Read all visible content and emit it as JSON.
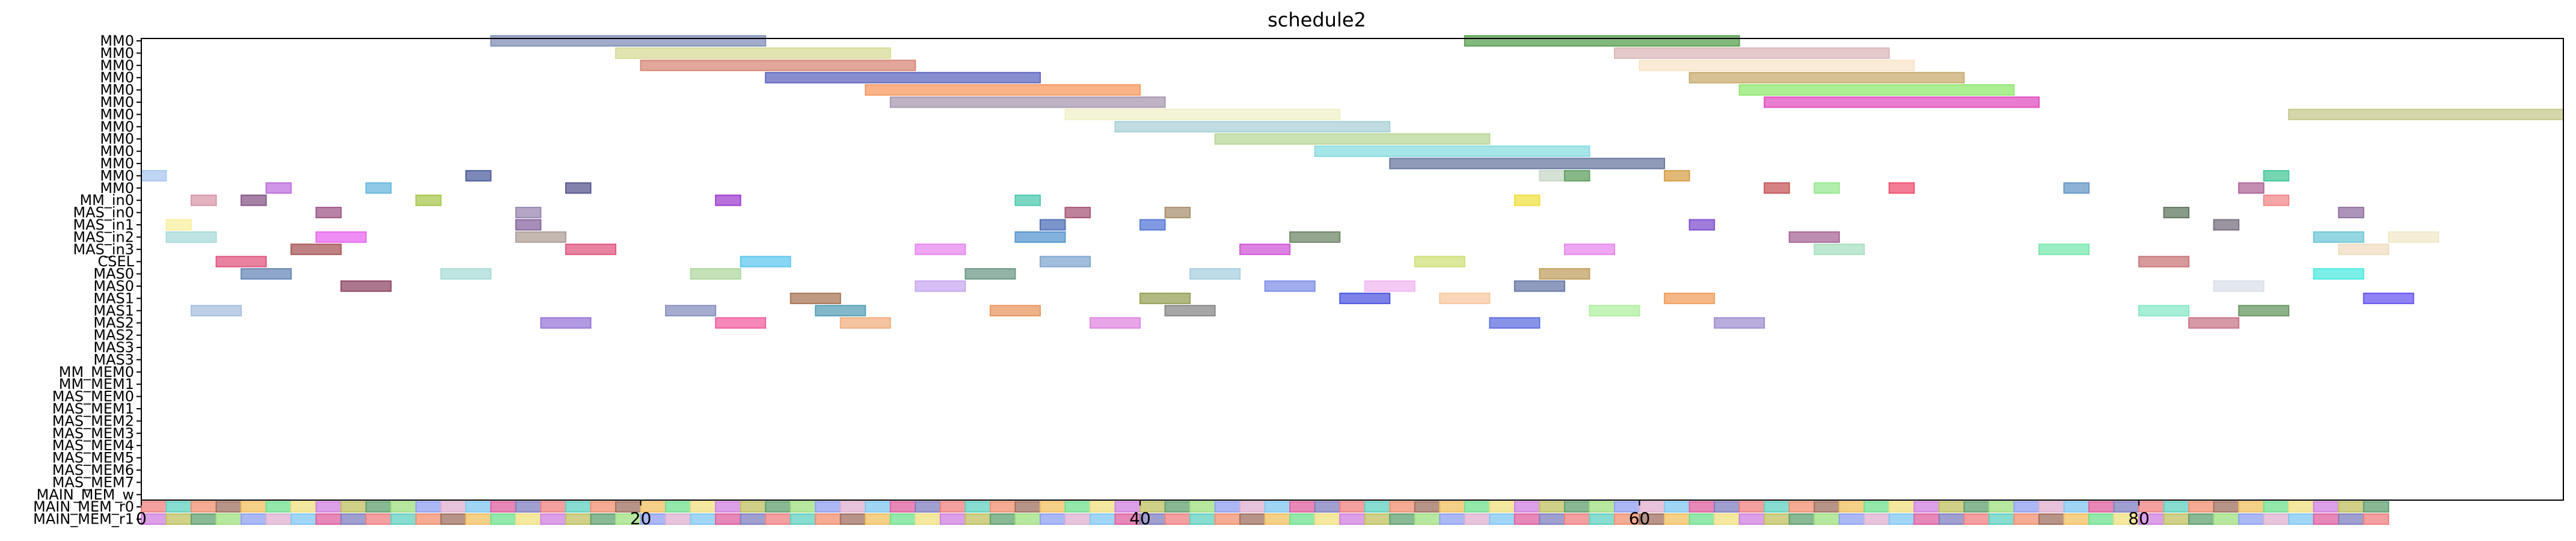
{
  "chart_data": {
    "type": "gantt",
    "title": "schedule2",
    "xlim": [
      0,
      97
    ],
    "xticks": [
      0,
      20,
      40,
      60,
      80
    ],
    "grid": false,
    "rows": [
      "MM0",
      "MM0",
      "MM0",
      "MM0",
      "MM0",
      "MM0",
      "MM0",
      "MM0",
      "MM0",
      "MM0",
      "MM0",
      "MM0",
      "MM0",
      "MM_in0",
      "MAS_in0",
      "MAS_in1",
      "MAS_in2",
      "MAS_in3",
      "CSEL",
      "MAS0",
      "MAS0",
      "MAS1",
      "MAS1",
      "MAS2",
      "MAS2",
      "MAS3",
      "MAS3",
      "MM_MEM0",
      "MM_MEM1",
      "MAS_MEM0",
      "MAS_MEM1",
      "MAS_MEM2",
      "MAS_MEM3",
      "MAS_MEM4",
      "MAS_MEM5",
      "MAS_MEM6",
      "MAS_MEM7",
      "MAIN_MEM_w",
      "MAIN_MEM_r0",
      "MAIN_MEM_r1"
    ],
    "bars": [
      {
        "row": 0,
        "start": 14,
        "end": 25,
        "color": "#8090b8"
      },
      {
        "row": 0,
        "start": 53,
        "end": 64,
        "color": "#5aa050"
      },
      {
        "row": 1,
        "start": 19,
        "end": 30,
        "color": "#d8dc98"
      },
      {
        "row": 1,
        "start": 59,
        "end": 70,
        "color": "#dcb8b8"
      },
      {
        "row": 2,
        "start": 20,
        "end": 31,
        "color": "#d88878"
      },
      {
        "row": 2,
        "start": 60,
        "end": 71,
        "color": "#f8e4c8"
      },
      {
        "row": 3,
        "start": 25,
        "end": 36,
        "color": "#6068c0"
      },
      {
        "row": 3,
        "start": 62,
        "end": 73,
        "color": "#c8ac70"
      },
      {
        "row": 4,
        "start": 29,
        "end": 40,
        "color": "#f89860"
      },
      {
        "row": 4,
        "start": 64,
        "end": 75,
        "color": "#90e870"
      },
      {
        "row": 5,
        "start": 30,
        "end": 41,
        "color": "#a898b0"
      },
      {
        "row": 5,
        "start": 65,
        "end": 76,
        "color": "#e050c0"
      },
      {
        "row": 6,
        "start": 37,
        "end": 48,
        "color": "#f0f0c8"
      },
      {
        "row": 6,
        "start": 86,
        "end": 97,
        "color": "#c8c890"
      },
      {
        "row": 7,
        "start": 39,
        "end": 50,
        "color": "#a8d0d8"
      },
      {
        "row": 8,
        "start": 43,
        "end": 54,
        "color": "#b8d898"
      },
      {
        "row": 9,
        "start": 47,
        "end": 58,
        "color": "#88dce0"
      },
      {
        "row": 10,
        "start": 50,
        "end": 61,
        "color": "#6878a0"
      },
      {
        "row": 11,
        "start": 0,
        "end": 1,
        "color": "#a8c8f0"
      },
      {
        "row": 11,
        "start": 13,
        "end": 14,
        "color": "#5060a0"
      },
      {
        "row": 11,
        "start": 56,
        "end": 57,
        "color": "#c8d8c8"
      },
      {
        "row": 11,
        "start": 57,
        "end": 58,
        "color": "#60a060"
      },
      {
        "row": 11,
        "start": 61,
        "end": 62,
        "color": "#d8a048"
      },
      {
        "row": 11,
        "start": 85,
        "end": 86,
        "color": "#48c898"
      },
      {
        "row": 12,
        "start": 5,
        "end": 6,
        "color": "#c070e0"
      },
      {
        "row": 12,
        "start": 9,
        "end": 10,
        "color": "#68b8e0"
      },
      {
        "row": 12,
        "start": 17,
        "end": 18,
        "color": "#585890"
      },
      {
        "row": 12,
        "start": 65,
        "end": 66,
        "color": "#c85858"
      },
      {
        "row": 12,
        "start": 67,
        "end": 68,
        "color": "#98e890"
      },
      {
        "row": 12,
        "start": 70,
        "end": 71,
        "color": "#f05070"
      },
      {
        "row": 12,
        "start": 77,
        "end": 78,
        "color": "#6898c8"
      },
      {
        "row": 12,
        "start": 84,
        "end": 85,
        "color": "#b06898"
      },
      {
        "row": 13,
        "start": 2,
        "end": 3,
        "color": "#d898a8"
      },
      {
        "row": 13,
        "start": 4,
        "end": 5,
        "color": "#885888"
      },
      {
        "row": 13,
        "start": 11,
        "end": 12,
        "color": "#a8c850"
      },
      {
        "row": 13,
        "start": 23,
        "end": 24,
        "color": "#a040d0"
      },
      {
        "row": 13,
        "start": 35,
        "end": 36,
        "color": "#50c8b0"
      },
      {
        "row": 13,
        "start": 55,
        "end": 56,
        "color": "#f0e040"
      },
      {
        "row": 13,
        "start": 85,
        "end": 86,
        "color": "#f08888"
      },
      {
        "row": 14,
        "start": 7,
        "end": 8,
        "color": "#a05888"
      },
      {
        "row": 14,
        "start": 15,
        "end": 16,
        "color": "#9888b0"
      },
      {
        "row": 14,
        "start": 37,
        "end": 38,
        "color": "#a85878"
      },
      {
        "row": 14,
        "start": 41,
        "end": 42,
        "color": "#a89070"
      },
      {
        "row": 14,
        "start": 81,
        "end": 82,
        "color": "#607860"
      },
      {
        "row": 14,
        "start": 88,
        "end": 89,
        "color": "#9070a0"
      },
      {
        "row": 15,
        "start": 1,
        "end": 2,
        "color": "#f8f0a0"
      },
      {
        "row": 15,
        "start": 15,
        "end": 16,
        "color": "#8868a0"
      },
      {
        "row": 15,
        "start": 36,
        "end": 37,
        "color": "#5070b8"
      },
      {
        "row": 15,
        "start": 40,
        "end": 41,
        "color": "#5878d8"
      },
      {
        "row": 15,
        "start": 62,
        "end": 63,
        "color": "#8050d0"
      },
      {
        "row": 15,
        "start": 83,
        "end": 84,
        "color": "#787080"
      },
      {
        "row": 16,
        "start": 1,
        "end": 3,
        "color": "#a8dcd8"
      },
      {
        "row": 16,
        "start": 7,
        "end": 9,
        "color": "#e868f0"
      },
      {
        "row": 16,
        "start": 15,
        "end": 17,
        "color": "#b0a098"
      },
      {
        "row": 16,
        "start": 35,
        "end": 37,
        "color": "#5898d0"
      },
      {
        "row": 16,
        "start": 46,
        "end": 48,
        "color": "#708868"
      },
      {
        "row": 16,
        "start": 66,
        "end": 68,
        "color": "#a86898"
      },
      {
        "row": 16,
        "start": 87,
        "end": 89,
        "color": "#70c8d8"
      },
      {
        "row": 16,
        "start": 90,
        "end": 92,
        "color": "#f0e8c8"
      },
      {
        "row": 17,
        "start": 6,
        "end": 8,
        "color": "#a85858"
      },
      {
        "row": 17,
        "start": 17,
        "end": 19,
        "color": "#e05880"
      },
      {
        "row": 17,
        "start": 31,
        "end": 33,
        "color": "#e888f0"
      },
      {
        "row": 17,
        "start": 44,
        "end": 46,
        "color": "#d058d8"
      },
      {
        "row": 17,
        "start": 57,
        "end": 59,
        "color": "#e888f0"
      },
      {
        "row": 17,
        "start": 67,
        "end": 69,
        "color": "#a8e0c0"
      },
      {
        "row": 17,
        "start": 76,
        "end": 78,
        "color": "#78e8b0"
      },
      {
        "row": 17,
        "start": 88,
        "end": 90,
        "color": "#f0dcc0"
      },
      {
        "row": 18,
        "start": 3,
        "end": 5,
        "color": "#e05880"
      },
      {
        "row": 18,
        "start": 24,
        "end": 26,
        "color": "#60c8f0"
      },
      {
        "row": 18,
        "start": 36,
        "end": 38,
        "color": "#80a8d0"
      },
      {
        "row": 18,
        "start": 51,
        "end": 53,
        "color": "#d0e078"
      },
      {
        "row": 18,
        "start": 80,
        "end": 82,
        "color": "#c87878"
      },
      {
        "row": 19,
        "start": 4,
        "end": 6,
        "color": "#6888b8"
      },
      {
        "row": 19,
        "start": 12,
        "end": 14,
        "color": "#a8dcd8"
      },
      {
        "row": 19,
        "start": 22,
        "end": 24,
        "color": "#b0d8a0"
      },
      {
        "row": 19,
        "start": 33,
        "end": 35,
        "color": "#709888"
      },
      {
        "row": 19,
        "start": 42,
        "end": 44,
        "color": "#a8d0e0"
      },
      {
        "row": 19,
        "start": 56,
        "end": 58,
        "color": "#c0a060"
      },
      {
        "row": 19,
        "start": 87,
        "end": 89,
        "color": "#50e8e0"
      },
      {
        "row": 20,
        "start": 8,
        "end": 10,
        "color": "#904868"
      },
      {
        "row": 20,
        "start": 31,
        "end": 33,
        "color": "#c8a8f0"
      },
      {
        "row": 20,
        "start": 45,
        "end": 47,
        "color": "#8090e8"
      },
      {
        "row": 20,
        "start": 49,
        "end": 51,
        "color": "#f0b8f0"
      },
      {
        "row": 20,
        "start": 55,
        "end": 57,
        "color": "#6878a8"
      },
      {
        "row": 20,
        "start": 83,
        "end": 85,
        "color": "#d8e0e8"
      },
      {
        "row": 21,
        "start": 26,
        "end": 28,
        "color": "#a87858"
      },
      {
        "row": 21,
        "start": 40,
        "end": 42,
        "color": "#98a058"
      },
      {
        "row": 21,
        "start": 48,
        "end": 50,
        "color": "#5058e0"
      },
      {
        "row": 21,
        "start": 52,
        "end": 54,
        "color": "#f8c8a0"
      },
      {
        "row": 21,
        "start": 61,
        "end": 63,
        "color": "#f0a060"
      },
      {
        "row": 21,
        "start": 89,
        "end": 91,
        "color": "#6858f0"
      },
      {
        "row": 22,
        "start": 2,
        "end": 4,
        "color": "#a8c0e0"
      },
      {
        "row": 22,
        "start": 21,
        "end": 23,
        "color": "#8890c0"
      },
      {
        "row": 22,
        "start": 27,
        "end": 29,
        "color": "#58a0b8"
      },
      {
        "row": 22,
        "start": 34,
        "end": 36,
        "color": "#e89860"
      },
      {
        "row": 22,
        "start": 41,
        "end": 43,
        "color": "#888888"
      },
      {
        "row": 22,
        "start": 58,
        "end": 60,
        "color": "#b0f0a0"
      },
      {
        "row": 22,
        "start": 80,
        "end": 82,
        "color": "#88e8c8"
      },
      {
        "row": 22,
        "start": 84,
        "end": 86,
        "color": "#689860"
      },
      {
        "row": 23,
        "start": 16,
        "end": 18,
        "color": "#9878d8"
      },
      {
        "row": 23,
        "start": 23,
        "end": 25,
        "color": "#f060a0"
      },
      {
        "row": 23,
        "start": 28,
        "end": 30,
        "color": "#f0b080"
      },
      {
        "row": 23,
        "start": 38,
        "end": 40,
        "color": "#e088e0"
      },
      {
        "row": 23,
        "start": 54,
        "end": 56,
        "color": "#6070e0"
      },
      {
        "row": 23,
        "start": 63,
        "end": 65,
        "color": "#a090d0"
      },
      {
        "row": 23,
        "start": 82,
        "end": 84,
        "color": "#c87888"
      }
    ],
    "mem_rows": [
      {
        "row": 38,
        "start": 0,
        "end": 90,
        "unit": 1
      },
      {
        "row": 39,
        "start": 0,
        "end": 90,
        "unit": 1
      }
    ]
  }
}
